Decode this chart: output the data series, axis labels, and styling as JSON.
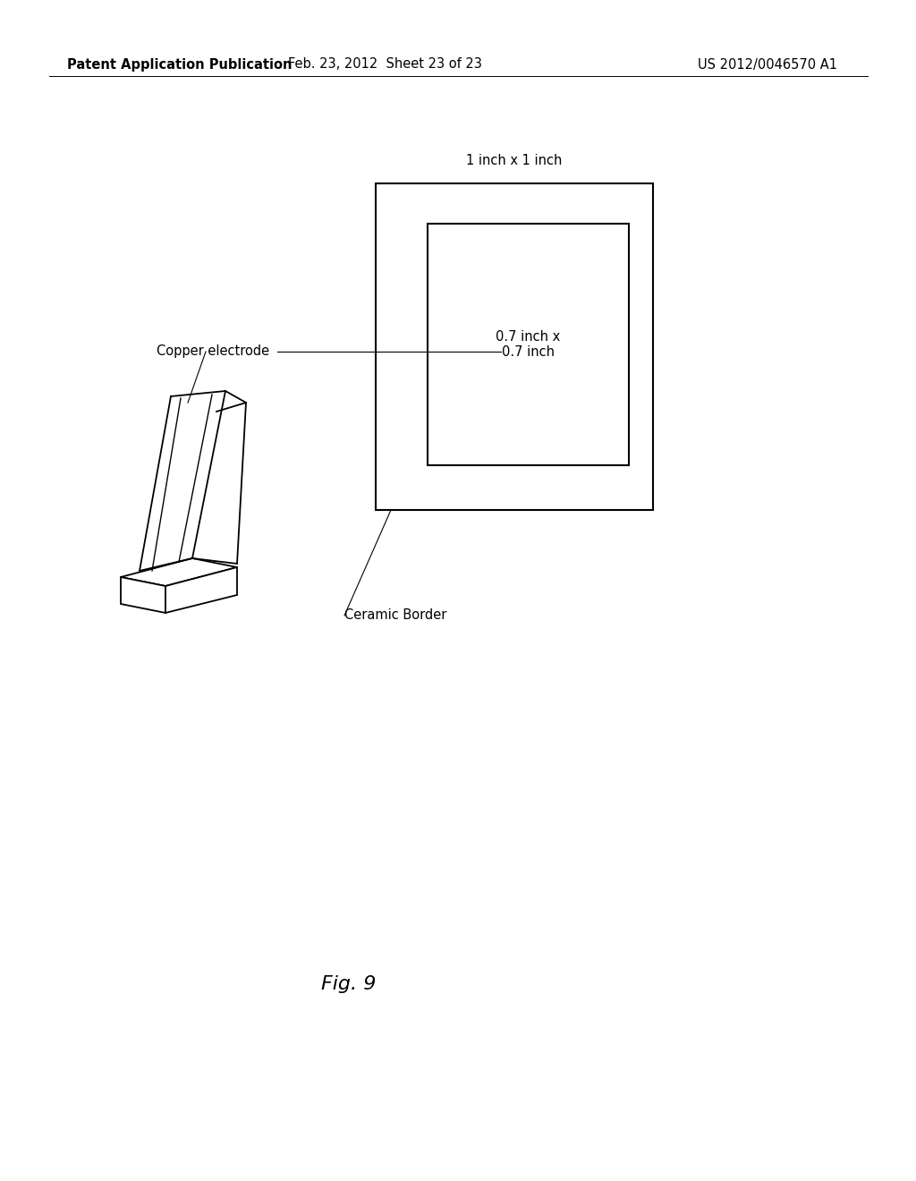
{
  "bg_color": "#ffffff",
  "header_left": "Patent Application Publication",
  "header_mid": "Feb. 23, 2012  Sheet 23 of 23",
  "header_right": "US 2012/0046570 A1",
  "fig_label": "Fig. 9",
  "label_1inch": "1 inch x 1 inch",
  "label_07inch": "0.7 inch x\n0.7 inch",
  "label_copper": "Copper electrode",
  "label_ceramic": "Ceramic Border",
  "text_color": "#000000",
  "font_size_header": 10.5,
  "font_size_labels": 10.5,
  "font_size_fig": 16
}
